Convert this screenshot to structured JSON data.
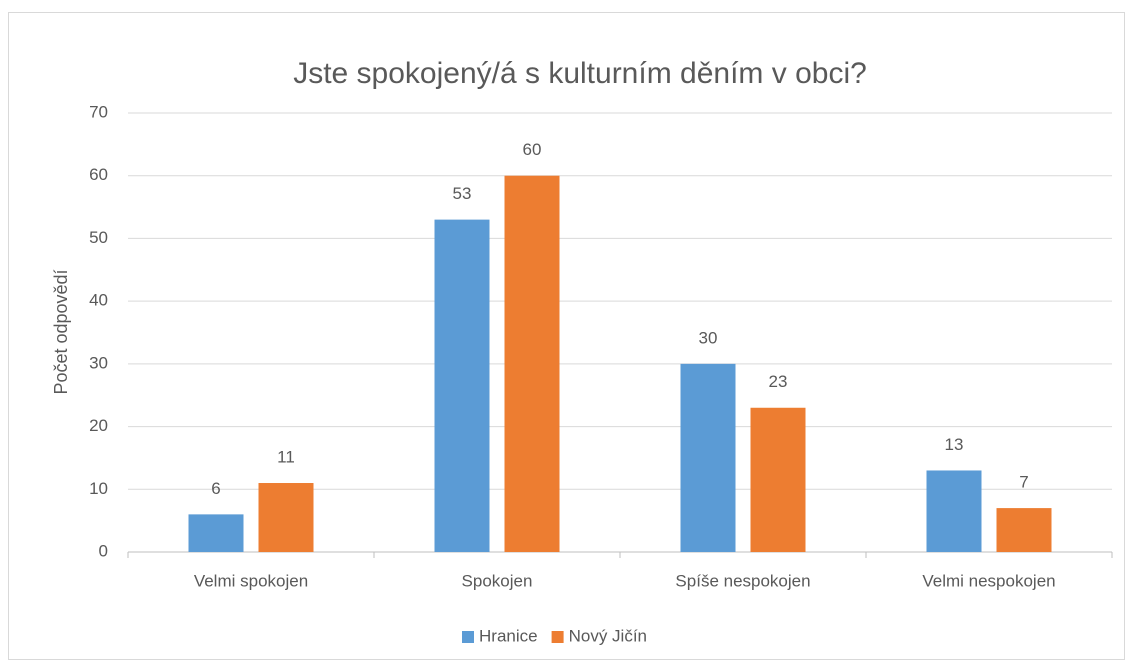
{
  "chart_data": {
    "type": "bar",
    "title": "Jste spokojený/á s kulturním děním v obci?",
    "y_label": "Počet odpovědí",
    "categories": [
      "Velmi spokojen",
      "Spokojen",
      "Spíše nespokojen",
      "Velmi nespokojen"
    ],
    "series": [
      {
        "name": "Hranice",
        "color": "#5b9bd5",
        "values": [
          6,
          53,
          30,
          13
        ]
      },
      {
        "name": "Nový Jičín",
        "color": "#ed7d31",
        "values": [
          11,
          60,
          23,
          7
        ]
      }
    ],
    "ylim": [
      0,
      70
    ],
    "yticks": [
      0,
      10,
      20,
      30,
      40,
      50,
      60,
      70
    ],
    "grid": true,
    "legend": "bottom",
    "data_labels": true
  }
}
